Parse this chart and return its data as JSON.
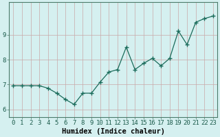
{
  "x": [
    0,
    1,
    2,
    3,
    4,
    5,
    6,
    7,
    8,
    9,
    10,
    11,
    12,
    13,
    14,
    15,
    16,
    17,
    18,
    19,
    20,
    21,
    22,
    23
  ],
  "y": [
    6.95,
    6.95,
    6.95,
    6.95,
    6.85,
    6.65,
    6.4,
    6.2,
    6.65,
    6.65,
    7.1,
    7.5,
    7.6,
    8.5,
    7.6,
    7.85,
    8.05,
    7.75,
    8.05,
    9.15,
    8.6,
    9.5,
    9.65,
    9.75
  ],
  "line_color": "#1a6b5a",
  "marker": "+",
  "marker_size": 4,
  "background_color": "#d5f0f0",
  "grid_color_v": "#c9a8a8",
  "grid_color_h": "#c9a8a8",
  "xlabel": "Humidex (Indice chaleur)",
  "xlim": [
    -0.5,
    23.5
  ],
  "ylim": [
    5.7,
    10.3
  ],
  "yticks": [
    6,
    7,
    8,
    9
  ],
  "xticks": [
    0,
    1,
    2,
    3,
    4,
    5,
    6,
    7,
    8,
    9,
    10,
    11,
    12,
    13,
    14,
    15,
    16,
    17,
    18,
    19,
    20,
    21,
    22,
    23
  ],
  "xlabel_fontsize": 7.5,
  "tick_fontsize": 6.5,
  "figsize": [
    3.2,
    2.0
  ],
  "dpi": 100
}
